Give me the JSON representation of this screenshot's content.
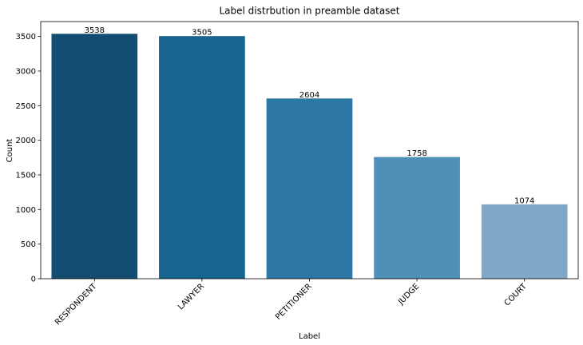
{
  "chart_data": {
    "type": "bar",
    "title": "Label distrbution in preamble dataset",
    "xlabel": "Label",
    "ylabel": "Count",
    "categories": [
      "RESPONDENT",
      "LAWYER",
      "PETITIONER",
      "JUDGE",
      "COURT"
    ],
    "values": [
      3538,
      3505,
      2604,
      1758,
      1074
    ],
    "colors": [
      "#134e72",
      "#17658f",
      "#2c77a4",
      "#4f90b8",
      "#7fa7c7"
    ],
    "yticks": [
      0,
      500,
      1000,
      1500,
      2000,
      2500,
      3000,
      3500
    ],
    "ylim": [
      0,
      3714.9
    ],
    "grid": false,
    "legend": "none"
  }
}
